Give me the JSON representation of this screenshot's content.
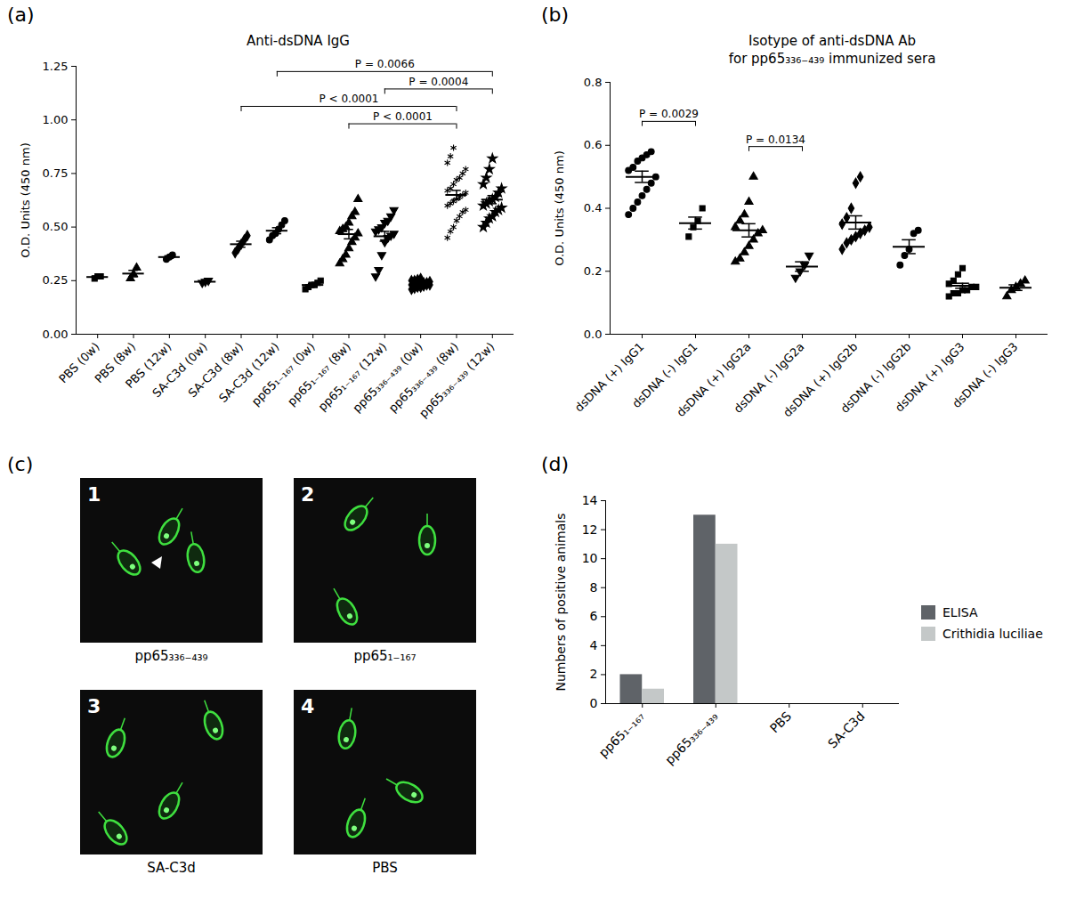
{
  "chart_data": [
    {
      "panel": "(a)",
      "type": "scatter",
      "title": "Anti-dsDNA IgG",
      "y_label": "O.D. Units (450 nm)",
      "categories": [
        "PBS (0w)",
        "PBS (8w)",
        "PBS (12w)",
        "SA-C3d (0w)",
        "SA-C3d (8w)",
        "SA-C3d (12w)",
        "pp65₁₋₁₆₇ (0w)",
        "pp65₁₋₁₆₇ (8w)",
        "pp65₁₋₁₆₇ (12w)",
        "pp65₃₃₆₋₄₃₉ (0w)",
        "pp65₃₃₆₋₄₃₉ (8w)",
        "pp65₃₃₆₋₄₃₉ (12w)"
      ],
      "groups": [
        {
          "marker": "square",
          "values": [
            0.26,
            0.27,
            0.27
          ],
          "mean": 0.267,
          "sem": 0.004
        },
        {
          "marker": "triangle",
          "values": [
            0.26,
            0.28,
            0.31
          ],
          "mean": 0.283,
          "sem": 0.015
        },
        {
          "marker": "circle",
          "values": [
            0.35,
            0.36,
            0.37
          ],
          "mean": 0.36,
          "sem": 0.006
        },
        {
          "marker": "triangle-down",
          "values": [
            0.24,
            0.245,
            0.25
          ],
          "mean": 0.245,
          "sem": 0.003
        },
        {
          "marker": "diamond",
          "values": [
            0.38,
            0.4,
            0.42,
            0.44,
            0.46
          ],
          "mean": 0.42,
          "sem": 0.014
        },
        {
          "marker": "circle",
          "values": [
            0.44,
            0.46,
            0.47,
            0.49,
            0.51,
            0.53
          ],
          "mean": 0.483,
          "sem": 0.014
        },
        {
          "marker": "square",
          "values": [
            0.21,
            0.22,
            0.23,
            0.23,
            0.24,
            0.25
          ],
          "mean": 0.23,
          "sem": 0.006
        },
        {
          "marker": "triangle",
          "values": [
            0.33,
            0.35,
            0.37,
            0.4,
            0.43,
            0.45,
            0.47,
            0.48,
            0.49,
            0.5,
            0.52,
            0.55,
            0.57,
            0.63
          ],
          "mean": 0.467,
          "sem": 0.022
        },
        {
          "marker": "triangle-down",
          "values": [
            0.27,
            0.3,
            0.37,
            0.43,
            0.45,
            0.46,
            0.47,
            0.48,
            0.49,
            0.5,
            0.52,
            0.53,
            0.55,
            0.58
          ],
          "mean": 0.457,
          "sem": 0.023
        },
        {
          "marker": "diamond",
          "values": [
            0.21,
            0.215,
            0.22,
            0.22,
            0.225,
            0.23,
            0.23,
            0.23,
            0.235,
            0.235,
            0.24,
            0.24,
            0.24,
            0.245,
            0.25,
            0.25,
            0.255,
            0.26
          ],
          "mean": 0.236,
          "sem": 0.003
        },
        {
          "marker": "asterisk",
          "values": [
            0.45,
            0.48,
            0.5,
            0.53,
            0.55,
            0.57,
            0.58,
            0.6,
            0.61,
            0.62,
            0.63,
            0.64,
            0.65,
            0.66,
            0.67,
            0.68,
            0.7,
            0.72,
            0.73,
            0.75,
            0.77,
            0.8,
            0.83,
            0.87
          ],
          "mean": 0.65,
          "sem": 0.021
        },
        {
          "marker": "star",
          "values": [
            0.5,
            0.52,
            0.54,
            0.55,
            0.57,
            0.58,
            0.59,
            0.6,
            0.61,
            0.62,
            0.63,
            0.64,
            0.66,
            0.68,
            0.7,
            0.73,
            0.77,
            0.82
          ],
          "mean": 0.628,
          "sem": 0.019
        }
      ],
      "comparisons": [
        {
          "from": "SA-C3d (12w)",
          "to": "pp65₃₃₆₋₄₃₉ (12w)",
          "label": "P = 0.0066"
        },
        {
          "from": "pp65₁₋₁₆₇ (12w)",
          "to": "pp65₃₃₆₋₄₃₉ (12w)",
          "label": "P = 0.0004"
        },
        {
          "from": "SA-C3d (8w)",
          "to": "pp65₃₃₆₋₄₃₉ (8w)",
          "label": "P < 0.0001"
        },
        {
          "from": "pp65₁₋₁₆₇ (8w)",
          "to": "pp65₃₃₆₋₄₃₉ (8w)",
          "label": "P < 0.0001"
        }
      ],
      "ylim": [
        0,
        1.25
      ],
      "yticks": [
        {
          "value": 0,
          "label": "0.00"
        },
        0.25,
        {
          "value": 0.5,
          "label": "0.50"
        },
        0.75,
        {
          "value": 1,
          "label": "1.00"
        },
        1.25
      ],
      "grid": false,
      "color": "#000000"
    },
    {
      "panel": "(b)",
      "type": "scatter",
      "title": "Isotype of anti-dsDNA Ab\nfor pp65₃₃₆₋₄₃₉ immunized sera",
      "y_label": "O.D. Units (450 nm)",
      "categories": [
        "dsDNA (+) IgG1",
        "dsDNA (-) IgG1",
        "dsDNA (+) IgG2a",
        "dsDNA (-) IgG2a",
        "dsDNA (+) IgG2b",
        "dsDNA (-) IgG2b",
        "dsDNA (+) IgG3",
        "dsDNA (-) IgG3"
      ],
      "groups": [
        {
          "marker": "circle",
          "values": [
            0.38,
            0.4,
            0.42,
            0.44,
            0.46,
            0.48,
            0.5,
            0.52,
            0.53,
            0.55,
            0.56,
            0.57,
            0.58
          ],
          "mean": 0.5,
          "sem": 0.018
        },
        {
          "marker": "square",
          "values": [
            0.31,
            0.34,
            0.36,
            0.4
          ],
          "mean": 0.353,
          "sem": 0.019
        },
        {
          "marker": "triangle",
          "values": [
            0.23,
            0.24,
            0.26,
            0.28,
            0.3,
            0.32,
            0.33,
            0.34,
            0.36,
            0.38,
            0.42,
            0.5
          ],
          "mean": 0.33,
          "sem": 0.021
        },
        {
          "marker": "triangle-down",
          "values": [
            0.18,
            0.2,
            0.22,
            0.25
          ],
          "mean": 0.215,
          "sem": 0.015
        },
        {
          "marker": "diamond",
          "values": [
            0.27,
            0.29,
            0.3,
            0.31,
            0.32,
            0.33,
            0.34,
            0.35,
            0.37,
            0.4,
            0.48,
            0.5
          ],
          "mean": 0.355,
          "sem": 0.021
        },
        {
          "marker": "circle",
          "values": [
            0.22,
            0.25,
            0.27,
            0.32,
            0.33
          ],
          "mean": 0.278,
          "sem": 0.022
        },
        {
          "marker": "square",
          "values": [
            0.12,
            0.13,
            0.13,
            0.14,
            0.14,
            0.15,
            0.15,
            0.16,
            0.17,
            0.19,
            0.21
          ],
          "mean": 0.154,
          "sem": 0.008
        },
        {
          "marker": "triangle",
          "values": [
            0.12,
            0.14,
            0.15,
            0.16,
            0.17
          ],
          "mean": 0.148,
          "sem": 0.009
        }
      ],
      "comparisons": [
        {
          "from": "dsDNA (+) IgG1",
          "to": "dsDNA (-) IgG1",
          "label": "P = 0.0029"
        },
        {
          "from": "dsDNA (+) IgG2a",
          "to": "dsDNA (-) IgG2a",
          "label": "P = 0.0134"
        }
      ],
      "ylim": [
        0,
        0.8
      ],
      "yticks": [
        {
          "value": 0,
          "label": "0.0"
        },
        0.2,
        0.4,
        0.6,
        0.8
      ],
      "grid": false,
      "color": "#000000"
    },
    {
      "panel": "(c)",
      "type": "image",
      "panels": [
        {
          "number": 1,
          "caption": "pp65₃₃₆₋₄₃₉"
        },
        {
          "number": 2,
          "caption": "pp65₁₋₁₆₇"
        },
        {
          "number": 3,
          "caption": "SA-C3d"
        },
        {
          "number": 4,
          "caption": "PBS"
        }
      ]
    },
    {
      "panel": "(d)",
      "type": "bar",
      "y_label": "Numbers of positive animals",
      "categories": [
        "pp65₁₋₁₆₇",
        "pp65₃₃₆₋₄₃₉",
        "PBS",
        "SA-C3d"
      ],
      "series": [
        {
          "name": "ELISA",
          "color": "#5f6368",
          "values": [
            2,
            13,
            0,
            0
          ]
        },
        {
          "name": "Crithidia luciliae",
          "color": "#c4c8c8",
          "values": [
            1,
            11,
            0,
            0
          ]
        }
      ],
      "ylim": [
        0,
        14
      ],
      "yticks": [
        0,
        2,
        4,
        6,
        8,
        10,
        12,
        14
      ],
      "legend": "right",
      "grid": false
    }
  ]
}
